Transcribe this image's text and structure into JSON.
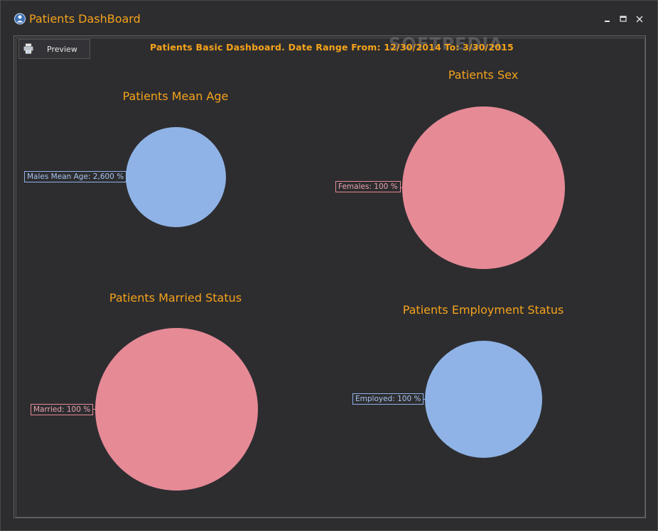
{
  "window": {
    "title": "Patients DashBoard",
    "controls": {
      "minimize": "🗕",
      "maximize": "🗖",
      "close": "✕"
    }
  },
  "toolbar": {
    "preview_label": "Preview",
    "preview_icon": "printer-icon"
  },
  "header": {
    "text": "Patients Basic Dashboard. Date Range From: 12/30/2014 To: 3/30/2015",
    "watermark": "SOFTPEDIA"
  },
  "colors": {
    "accent": "#f5a31a",
    "blue": "#8fb3e6",
    "pink": "#e68a96"
  },
  "charts": {
    "mean_age": {
      "title": "Patients Mean Age",
      "label": "Males Mean Age: 2,600 %"
    },
    "sex": {
      "title": "Patients Sex",
      "label": "Females: 100 %"
    },
    "married": {
      "title": "Patients Married Status",
      "label": "Married: 100 %"
    },
    "employment": {
      "title": "Patients Employment Status",
      "label": "Employed: 100 %"
    }
  },
  "chart_data": [
    {
      "type": "pie",
      "title": "Patients Mean Age",
      "categories": [
        "Males Mean Age"
      ],
      "values": [
        2600
      ],
      "unit": "%"
    },
    {
      "type": "pie",
      "title": "Patients Sex",
      "categories": [
        "Females"
      ],
      "values": [
        100
      ],
      "unit": "%"
    },
    {
      "type": "pie",
      "title": "Patients Married Status",
      "categories": [
        "Married"
      ],
      "values": [
        100
      ],
      "unit": "%"
    },
    {
      "type": "pie",
      "title": "Patients Employment Status",
      "categories": [
        "Employed"
      ],
      "values": [
        100
      ],
      "unit": "%"
    }
  ]
}
